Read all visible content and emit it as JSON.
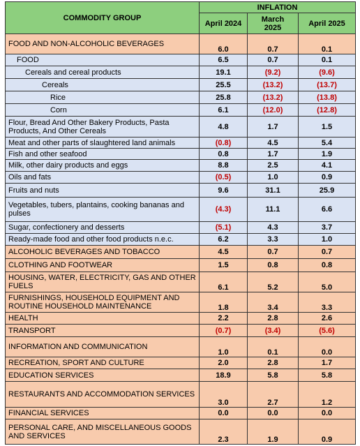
{
  "header": {
    "group": "COMMODITY GROUP",
    "inflation": "INFLATION",
    "columns": [
      "April 2024",
      "March 2025",
      "April 2025"
    ]
  },
  "table": {
    "rows": [
      {
        "label": "FOOD AND NON-ALCOHOLIC BEVERAGES",
        "indent": 0,
        "band": "peach",
        "values": [
          "6.0",
          "0.7",
          "0.1"
        ]
      },
      {
        "label": "FOOD",
        "indent": 1,
        "band": "lavender",
        "values": [
          "6.5",
          "0.7",
          "0.1"
        ]
      },
      {
        "label": "Cereals and cereal products",
        "indent": 2,
        "band": "lavender",
        "values": [
          "19.1",
          "(9.2)",
          "(9.6)"
        ]
      },
      {
        "label": "Cereals",
        "indent": 3,
        "band": "lavender",
        "values": [
          "25.5",
          "(13.2)",
          "(13.7)"
        ]
      },
      {
        "label": "Rice",
        "indent": 4,
        "band": "lavender",
        "values": [
          "25.8",
          "(13.2)",
          "(13.8)"
        ]
      },
      {
        "label": "Corn",
        "indent": 4,
        "band": "lavender",
        "values": [
          "6.1",
          "(12.0)",
          "(12.8)"
        ]
      },
      {
        "label": "Flour, Bread And Other Bakery Products, Pasta Products, And Other Cereals",
        "indent": 0,
        "band": "lavender",
        "values": [
          "4.8",
          "1.7",
          "1.5"
        ]
      },
      {
        "label": "Meat and other parts of slaughtered land animals",
        "indent": 0,
        "band": "lavender",
        "values": [
          "(0.8)",
          "4.5",
          "5.4"
        ]
      },
      {
        "label": "Fish and other seafood",
        "indent": 0,
        "band": "lavender",
        "values": [
          "0.8",
          "1.7",
          "1.9"
        ]
      },
      {
        "label": "Milk, other dairy products and eggs",
        "indent": 0,
        "band": "lavender",
        "values": [
          "8.8",
          "2.5",
          "4.1"
        ]
      },
      {
        "label": "Oils and fats",
        "indent": 0,
        "band": "lavender",
        "values": [
          "(0.5)",
          "1.0",
          "0.9"
        ]
      },
      {
        "label": "Fruits and nuts",
        "indent": 0,
        "band": "lavender",
        "values": [
          "9.6",
          "31.1",
          "25.9"
        ]
      },
      {
        "label": "Vegetables, tubers, plantains, cooking bananas and pulses",
        "indent": 0,
        "band": "lavender",
        "values": [
          "(4.3)",
          "11.1",
          "6.6"
        ]
      },
      {
        "label": "Sugar, confectionery and desserts",
        "indent": 0,
        "band": "lavender",
        "values": [
          "(5.1)",
          "4.3",
          "3.7"
        ]
      },
      {
        "label": "Ready-made food and other food products n.e.c.",
        "indent": 0,
        "band": "lavender",
        "values": [
          "6.2",
          "3.3",
          "1.0"
        ]
      },
      {
        "label": "ALCOHOLIC BEVERAGES  AND TOBACCO",
        "indent": 0,
        "band": "peach",
        "values": [
          "4.5",
          "0.7",
          "0.7"
        ]
      },
      {
        "label": "CLOTHING AND FOOTWEAR",
        "indent": 0,
        "band": "peach",
        "values": [
          "1.5",
          "0.8",
          "0.8"
        ]
      },
      {
        "label": "HOUSING, WATER, ELECTRICITY, GAS AND OTHER FUELS",
        "indent": 0,
        "band": "peach",
        "values": [
          "6.1",
          "5.2",
          "5.0"
        ]
      },
      {
        "label": "FURNISHINGS, HOUSEHOLD EQUIPMENT AND ROUTINE HOUSEHOLD MAINTENANCE",
        "indent": 0,
        "band": "peach",
        "values": [
          "1.8",
          "3.4",
          "3.3"
        ]
      },
      {
        "label": "HEALTH",
        "indent": 0,
        "band": "peach",
        "values": [
          "2.2",
          "2.8",
          "2.6"
        ]
      },
      {
        "label": "TRANSPORT",
        "indent": 0,
        "band": "peach",
        "values": [
          "(0.7)",
          "(3.4)",
          "(5.6)"
        ]
      },
      {
        "label": "INFORMATION AND COMMUNICATION",
        "indent": 0,
        "band": "peach",
        "values": [
          "1.0",
          "0.1",
          "0.0"
        ]
      },
      {
        "label": "RECREATION, SPORT AND CULTURE",
        "indent": 0,
        "band": "peach",
        "values": [
          "2.0",
          "2.8",
          "1.7"
        ]
      },
      {
        "label": "EDUCATION SERVICES",
        "indent": 0,
        "band": "peach",
        "values": [
          "18.9",
          "5.8",
          "5.8"
        ]
      },
      {
        "label": "RESTAURANTS AND ACCOMMODATION SERVICES",
        "indent": 0,
        "band": "peach",
        "values": [
          "3.0",
          "2.7",
          "1.2"
        ]
      },
      {
        "label": "FINANCIAL SERVICES",
        "indent": 0,
        "band": "peach",
        "values": [
          "0.0",
          "0.0",
          "0.0"
        ]
      },
      {
        "label": "PERSONAL CARE, AND MISCELLANEOUS GOODS AND SERVICES",
        "indent": 0,
        "band": "peach",
        "values": [
          "2.3",
          "1.9",
          "0.9"
        ]
      }
    ]
  }
}
